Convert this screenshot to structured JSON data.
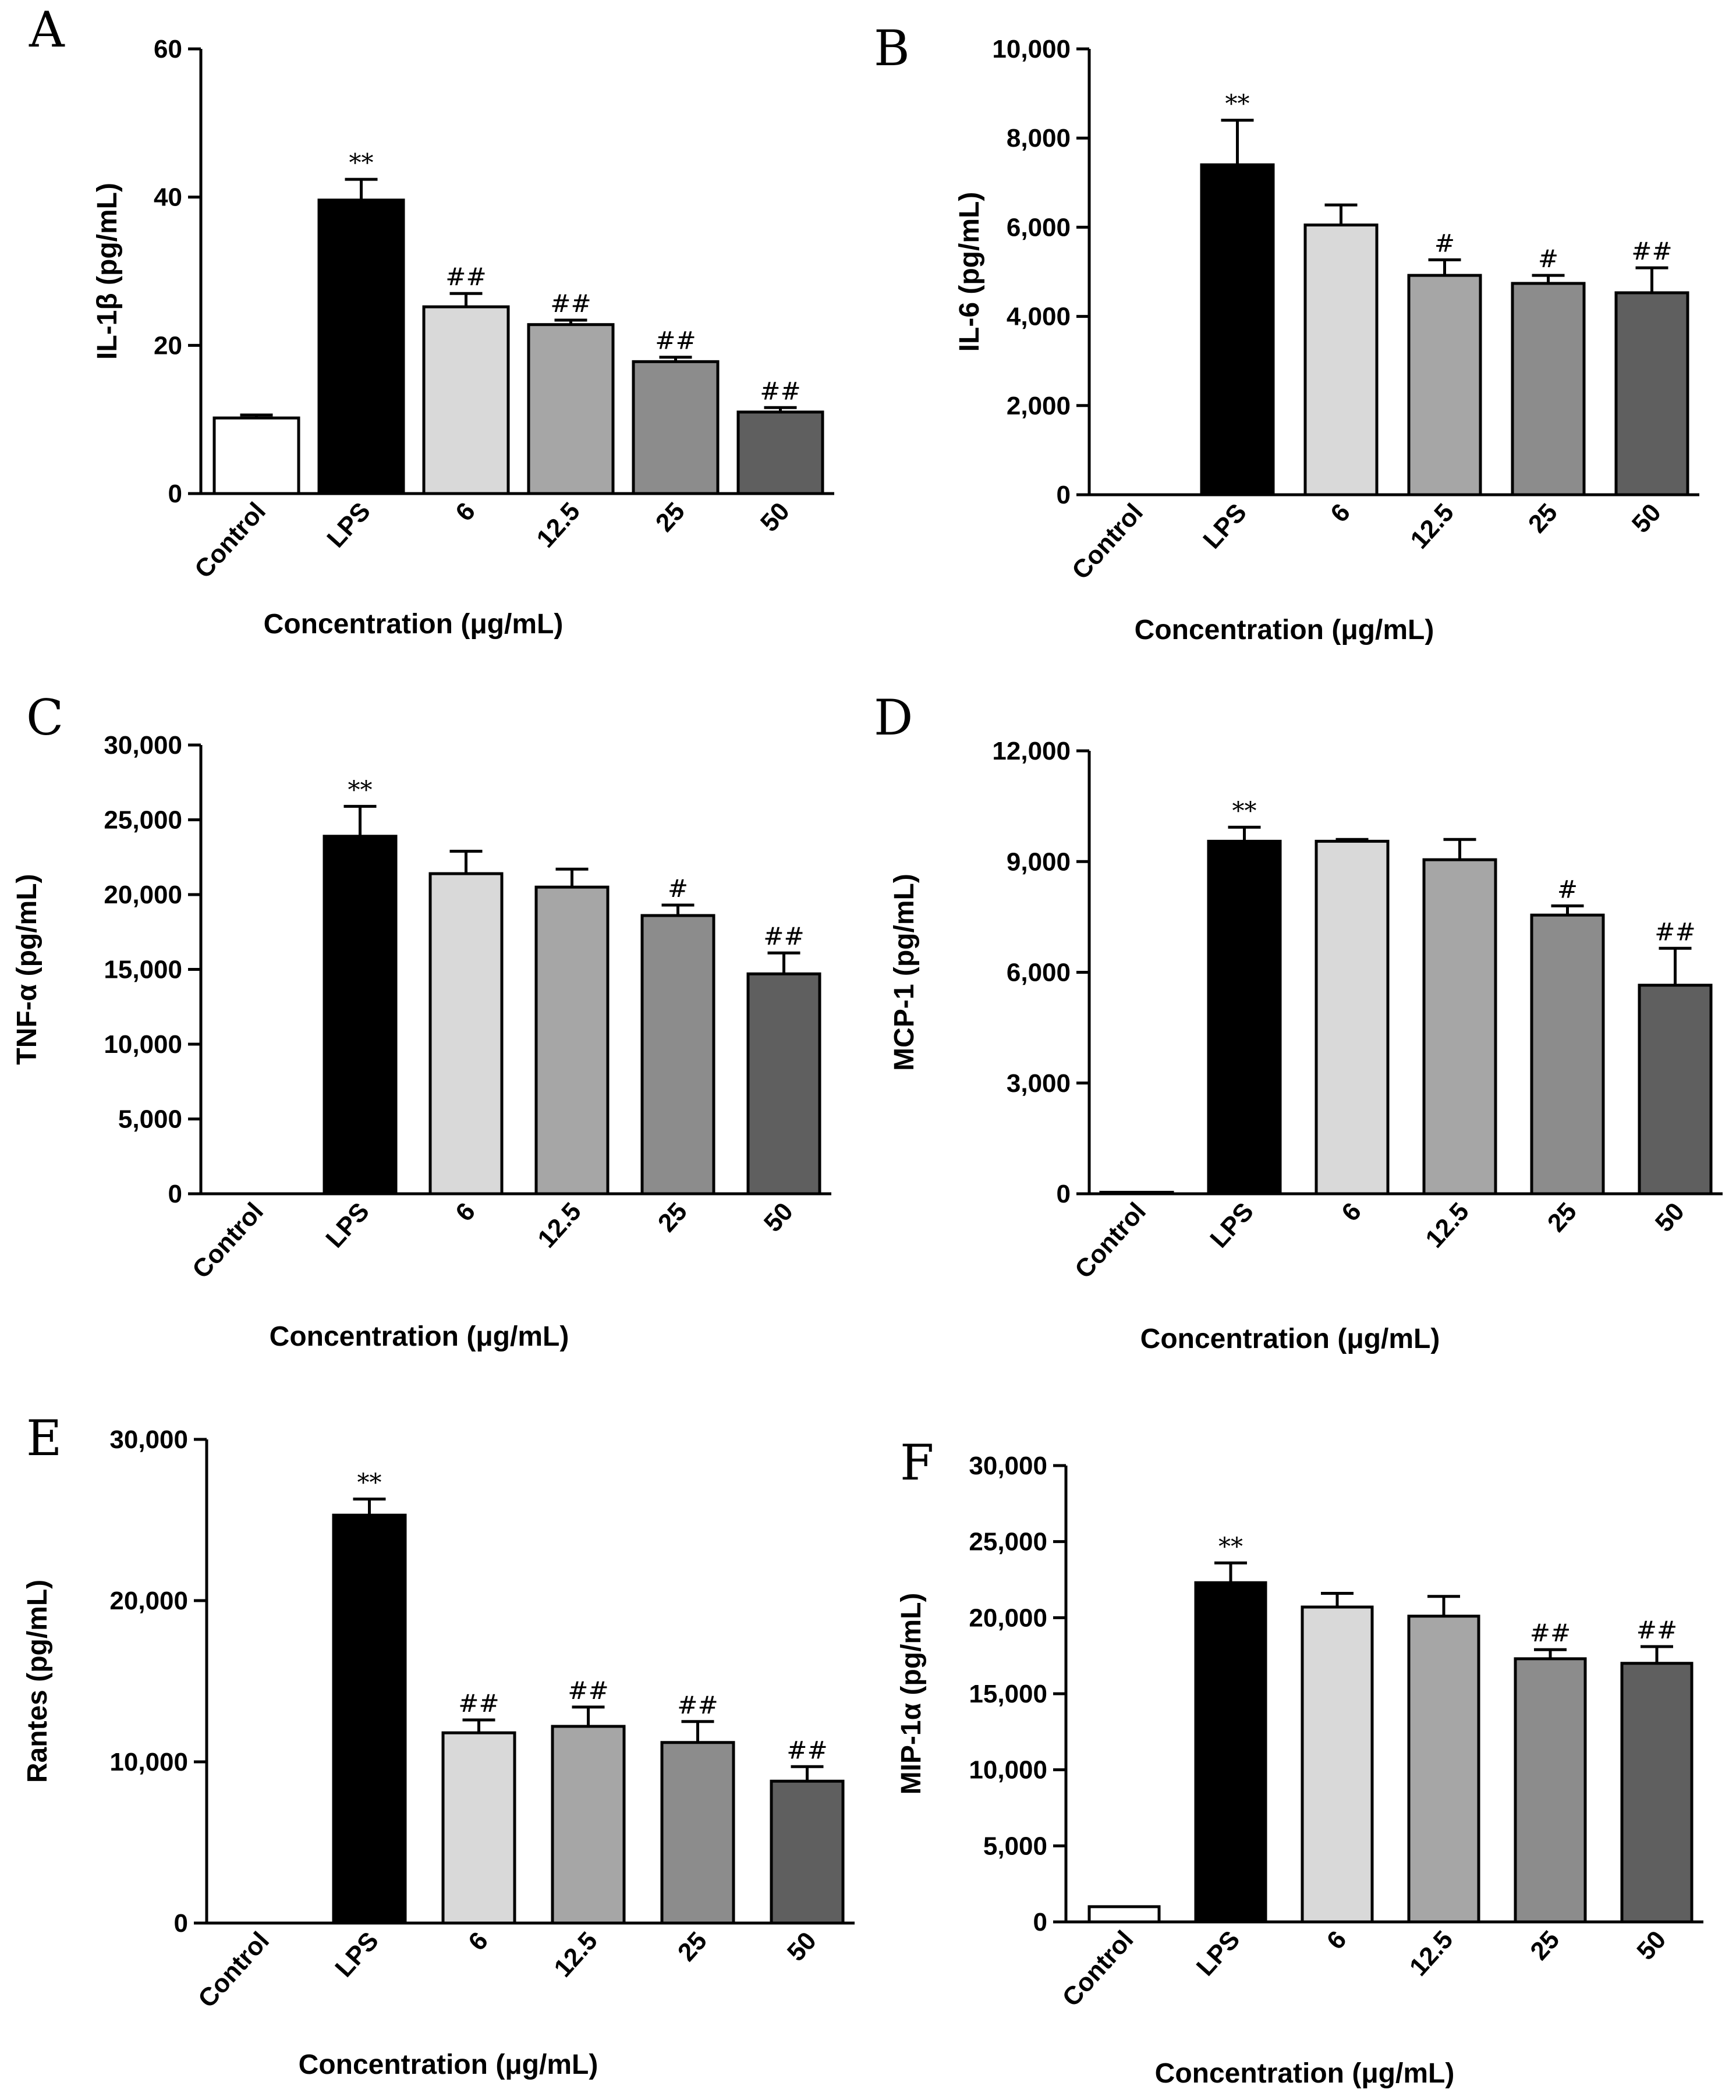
{
  "figure": {
    "charts": [
      {
        "id": "A",
        "panel_label": "A",
        "ylabel": "IL-1β (pg/mL)",
        "xlabel": "Concentration (μg/mL)",
        "ytick_labels": [
          "0",
          "20",
          "40",
          "60"
        ]
      },
      {
        "id": "B",
        "panel_label": "B",
        "ylabel": "IL-6 (pg/mL)",
        "xlabel": "Concentration (μg/mL)",
        "ytick_labels": [
          "0",
          "2,000",
          "4,000",
          "6,000",
          "8,000",
          "10,000"
        ]
      },
      {
        "id": "C",
        "panel_label": "C",
        "ylabel": "TNF-α (pg/mL)",
        "xlabel": "Concentration (μg/mL)",
        "ytick_labels": [
          "0",
          "5,000",
          "10,000",
          "15,000",
          "20,000",
          "25,000",
          "30,000"
        ]
      },
      {
        "id": "D",
        "panel_label": "D",
        "ylabel": "MCP-1 (pg/mL)",
        "xlabel": "Concentration (μg/mL)",
        "ytick_labels": [
          "0",
          "3,000",
          "6,000",
          "9,000",
          "12,000"
        ]
      },
      {
        "id": "E",
        "panel_label": "E",
        "ylabel": "Rantes (pg/mL)",
        "xlabel": "Concentration (μg/mL)",
        "ytick_labels": [
          "0",
          "10,000",
          "20,000",
          "30,000"
        ]
      },
      {
        "id": "F",
        "panel_label": "F",
        "ylabel": "MIP-1α (pg/mL)",
        "xlabel": "Concentration (μg/mL)",
        "ytick_labels": [
          "0",
          "5,000",
          "10,000",
          "15,000",
          "20,000",
          "25,000",
          "30,000"
        ]
      }
    ]
  },
  "chart_data": [
    {
      "panel": "A",
      "type": "bar",
      "title": "",
      "xlabel": "Concentration (μg/mL)",
      "ylabel": "IL-1β (pg/mL)",
      "categories": [
        "Control",
        "LPS",
        "6",
        "12.5",
        "25",
        "50"
      ],
      "values": [
        10.2,
        39.6,
        25.2,
        22.8,
        17.8,
        11.0
      ],
      "errors": [
        0.4,
        2.8,
        1.8,
        0.6,
        0.6,
        0.6
      ],
      "significance": [
        "",
        "**",
        "##",
        "##",
        "##",
        "##"
      ],
      "bar_colors": [
        "#ffffff",
        "#000000",
        "#d9d9d9",
        "#a6a6a6",
        "#8c8c8c",
        "#5f5f5f"
      ],
      "ylim": [
        0,
        60
      ],
      "yticks": [
        0,
        20,
        40,
        60
      ],
      "grid": false,
      "legend": "none"
    },
    {
      "panel": "B",
      "type": "bar",
      "title": "",
      "xlabel": "Concentration (μg/mL)",
      "ylabel": "IL-6 (pg/mL)",
      "categories": [
        "Control",
        "LPS",
        "6",
        "12.5",
        "25",
        "50"
      ],
      "values": [
        0,
        7400,
        6050,
        4920,
        4740,
        4530
      ],
      "errors": [
        0,
        1000,
        450,
        350,
        180,
        560
      ],
      "significance": [
        "",
        "**",
        "",
        "#",
        "#",
        "##"
      ],
      "bar_colors": [
        "#ffffff",
        "#000000",
        "#d9d9d9",
        "#a6a6a6",
        "#8c8c8c",
        "#5f5f5f"
      ],
      "ylim": [
        0,
        10000
      ],
      "yticks": [
        0,
        2000,
        4000,
        6000,
        8000,
        10000
      ],
      "grid": false,
      "legend": "none"
    },
    {
      "panel": "C",
      "type": "bar",
      "title": "",
      "xlabel": "Concentration (μg/mL)",
      "ylabel": "TNF-α (pg/mL)",
      "categories": [
        "Control",
        "LPS",
        "6",
        "12.5",
        "25",
        "50"
      ],
      "values": [
        0,
        23900,
        21400,
        20500,
        18600,
        14700
      ],
      "errors": [
        0,
        2000,
        1500,
        1200,
        700,
        1400
      ],
      "significance": [
        "",
        "**",
        "",
        "",
        "#",
        "##"
      ],
      "bar_colors": [
        "#ffffff",
        "#000000",
        "#d9d9d9",
        "#a6a6a6",
        "#8c8c8c",
        "#5f5f5f"
      ],
      "ylim": [
        0,
        30000
      ],
      "yticks": [
        0,
        5000,
        10000,
        15000,
        20000,
        25000,
        30000
      ],
      "grid": false,
      "legend": "none"
    },
    {
      "panel": "D",
      "type": "bar",
      "title": "",
      "xlabel": "Concentration (μg/mL)",
      "ylabel": "MCP-1 (pg/mL)",
      "categories": [
        "Control",
        "LPS",
        "6",
        "12.5",
        "25",
        "50"
      ],
      "values": [
        40,
        9550,
        9550,
        9050,
        7550,
        5650
      ],
      "errors": [
        0,
        380,
        50,
        550,
        250,
        1000
      ],
      "significance": [
        "",
        "**",
        "",
        "",
        "#",
        "##"
      ],
      "bar_colors": [
        "#ffffff",
        "#000000",
        "#d9d9d9",
        "#a6a6a6",
        "#8c8c8c",
        "#5f5f5f"
      ],
      "ylim": [
        0,
        12000
      ],
      "yticks": [
        0,
        3000,
        6000,
        9000,
        12000
      ],
      "grid": false,
      "legend": "none"
    },
    {
      "panel": "E",
      "type": "bar",
      "title": "",
      "xlabel": "Concentration (μg/mL)",
      "ylabel": "Rantes (pg/mL)",
      "categories": [
        "Control",
        "LPS",
        "6",
        "12.5",
        "25",
        "50"
      ],
      "values": [
        0,
        25300,
        11800,
        12200,
        11200,
        8800
      ],
      "errors": [
        0,
        1000,
        800,
        1200,
        1300,
        900
      ],
      "significance": [
        "",
        "**",
        "##",
        "##",
        "##",
        "##"
      ],
      "bar_colors": [
        "#ffffff",
        "#000000",
        "#d9d9d9",
        "#a6a6a6",
        "#8c8c8c",
        "#5f5f5f"
      ],
      "ylim": [
        0,
        30000
      ],
      "yticks": [
        0,
        10000,
        20000,
        30000
      ],
      "grid": false,
      "legend": "none"
    },
    {
      "panel": "F",
      "type": "bar",
      "title": "",
      "xlabel": "Concentration (μg/mL)",
      "ylabel": "MIP-1α (pg/mL)",
      "categories": [
        "Control",
        "LPS",
        "6",
        "12.5",
        "25",
        "50"
      ],
      "values": [
        1000,
        22300,
        20700,
        20100,
        17300,
        17000
      ],
      "errors": [
        0,
        1300,
        900,
        1300,
        600,
        1100
      ],
      "significance": [
        "",
        "**",
        "",
        "",
        "##",
        "##"
      ],
      "bar_colors": [
        "#ffffff",
        "#000000",
        "#d9d9d9",
        "#a6a6a6",
        "#8c8c8c",
        "#5f5f5f"
      ],
      "ylim": [
        0,
        30000
      ],
      "yticks": [
        0,
        5000,
        10000,
        15000,
        20000,
        25000,
        30000
      ],
      "grid": false,
      "legend": "none"
    }
  ]
}
